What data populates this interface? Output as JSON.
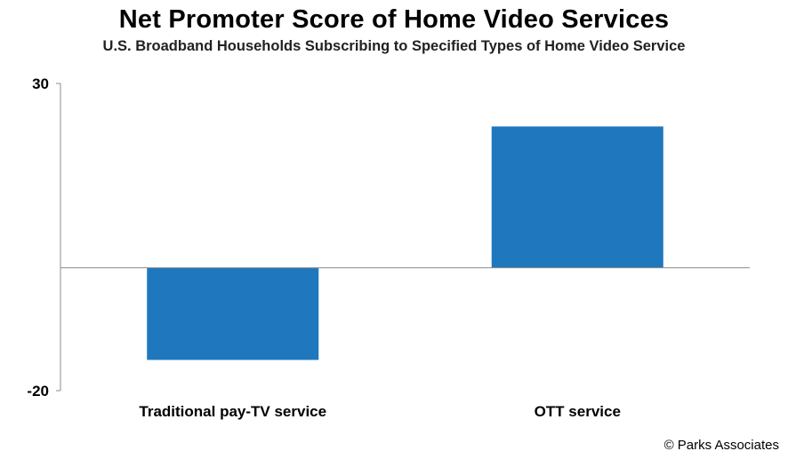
{
  "chart_data": {
    "type": "bar",
    "title": "Net Promoter Score of Home Video Services",
    "subtitle": "U.S. Broadband Households Subscribing to Specified Types of Home Video Service",
    "categories": [
      "Traditional pay-TV service",
      "OTT service"
    ],
    "values": [
      -15,
      23
    ],
    "ylim": [
      -20,
      30
    ],
    "yticks": [
      "30",
      "-20"
    ],
    "ytick_values": [
      30,
      -20
    ],
    "grid": false,
    "bar_color": "#1f77bd"
  },
  "credit": "© Parks Associates"
}
